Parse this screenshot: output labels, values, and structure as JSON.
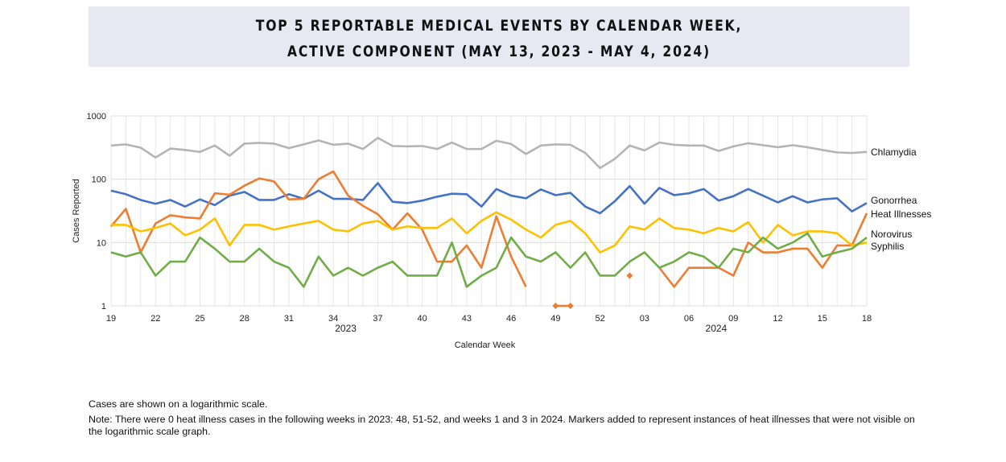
{
  "title": {
    "line1": "TOP 5 REPORTABLE MEDICAL EVENTS BY CALENDAR WEEK,",
    "line2": "ACTIVE COMPONENT (MAY 13, 2023 - MAY 4, 2024)"
  },
  "notes": {
    "scale": "Cases are shown on a logarithmic scale.",
    "note": "Note: There were 0 heat illness cases in the following weeks in 2023: 48, 51-52, and weeks 1 and 3 in 2024. Markers added to represent instances of heat illnesses that were not visible on the logarithmic scale graph."
  },
  "chart_data": {
    "type": "line",
    "xlabel": "Calendar Week",
    "ylabel": "Cases Reported",
    "yscale": "log",
    "ylim": [
      1,
      1000
    ],
    "y_ticks": [
      "1",
      "10",
      "100",
      "1000"
    ],
    "grid": true,
    "legend": "right-end labels",
    "x": [
      "19",
      "20",
      "21",
      "22",
      "23",
      "24",
      "25",
      "26",
      "27",
      "28",
      "29",
      "30",
      "31",
      "32",
      "33",
      "34",
      "35",
      "36",
      "37",
      "38",
      "39",
      "40",
      "41",
      "42",
      "43",
      "44",
      "45",
      "46",
      "47",
      "48",
      "49",
      "50",
      "51",
      "52",
      "01",
      "02",
      "03",
      "04",
      "05",
      "06",
      "07",
      "08",
      "09",
      "10",
      "11",
      "12",
      "13",
      "14",
      "15",
      "16",
      "17",
      "18"
    ],
    "x_tick_labels": [
      "19",
      "22",
      "25",
      "28",
      "31",
      "34",
      "37",
      "40",
      "43",
      "46",
      "49",
      "52",
      "03",
      "06",
      "09",
      "12",
      "15",
      "18"
    ],
    "year_labels": [
      {
        "label": "2023",
        "week": "35"
      },
      {
        "label": "2024",
        "week": "08"
      }
    ],
    "series": [
      {
        "name": "Chlamydia",
        "color": "#b4b4b4",
        "values": [
          340,
          355,
          315,
          220,
          305,
          290,
          270,
          340,
          235,
          365,
          375,
          365,
          310,
          355,
          410,
          350,
          365,
          300,
          450,
          335,
          330,
          335,
          300,
          380,
          300,
          300,
          405,
          360,
          250,
          340,
          355,
          350,
          260,
          150,
          210,
          340,
          285,
          380,
          350,
          340,
          340,
          280,
          330,
          370,
          345,
          320,
          345,
          320,
          290,
          265,
          260,
          270
        ]
      },
      {
        "name": "Gonorrhea",
        "color": "#4472c4",
        "values": [
          66,
          58,
          47,
          41,
          47,
          37,
          48,
          39,
          55,
          63,
          47,
          47,
          58,
          49,
          66,
          49,
          49,
          47,
          87,
          44,
          42,
          46,
          53,
          59,
          58,
          37,
          70,
          55,
          50,
          69,
          56,
          61,
          37,
          29,
          45,
          78,
          41,
          73,
          56,
          60,
          70,
          46,
          54,
          70,
          55,
          43,
          54,
          43,
          48,
          50,
          31,
          42
        ]
      },
      {
        "name": "Heat Illnesses",
        "color": "#ed7d31",
        "values": [
          18,
          34,
          7,
          20,
          27,
          25,
          24,
          60,
          57,
          79,
          103,
          92,
          48,
          49,
          100,
          133,
          55,
          38,
          28,
          16,
          29,
          16,
          5,
          5,
          9,
          4,
          26,
          6,
          2,
          null,
          1,
          1,
          null,
          null,
          null,
          3,
          null,
          4,
          2,
          4,
          4,
          4,
          3,
          10,
          7,
          7,
          8,
          8,
          4,
          9,
          9,
          29
        ],
        "markers_at": [
          "49",
          "50",
          "02"
        ]
      },
      {
        "name": "Norovirus",
        "color": "#ffc000",
        "values": [
          19,
          19,
          15,
          17,
          20,
          13,
          16,
          24,
          9,
          19,
          19,
          16,
          18,
          20,
          22,
          16,
          15,
          20,
          22,
          16,
          18,
          17,
          17,
          24,
          14,
          22,
          30,
          23,
          16,
          12,
          19,
          22,
          14,
          7,
          9,
          18,
          16,
          24,
          17,
          16,
          14,
          17,
          15,
          21,
          10,
          19,
          13,
          15,
          15,
          14,
          9,
          10
        ]
      },
      {
        "name": "Syphilis",
        "color": "#70ad47",
        "values": [
          7,
          6,
          7,
          3,
          5,
          5,
          12,
          8,
          5,
          5,
          8,
          5,
          4,
          2,
          6,
          3,
          4,
          3,
          4,
          5,
          3,
          3,
          3,
          10,
          2,
          3,
          4,
          12,
          6,
          5,
          7,
          4,
          7,
          3,
          3,
          5,
          7,
          4,
          5,
          7,
          6,
          4,
          8,
          7,
          12,
          8,
          10,
          14,
          6,
          7,
          8,
          12
        ]
      }
    ]
  }
}
